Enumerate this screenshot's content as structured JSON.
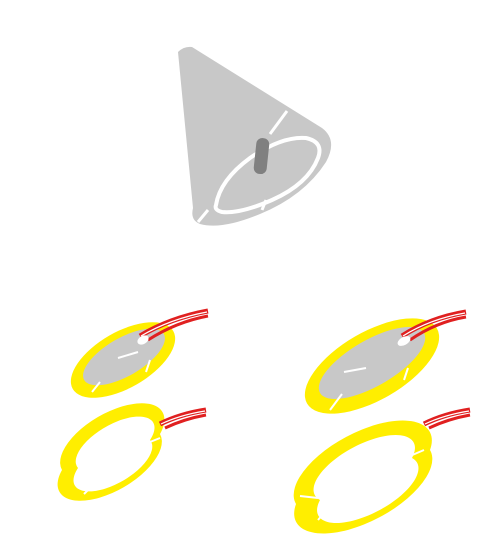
{
  "scene": {
    "description_items": [
      {
        "id": "cone-shell",
        "icon": "cone-icon"
      },
      {
        "id": "disc-small-electroded",
        "icon": "piezo-disc-icon"
      },
      {
        "id": "disc-large-electroded",
        "icon": "piezo-disc-icon"
      },
      {
        "id": "ring-small",
        "icon": "piezo-ring-icon"
      },
      {
        "id": "ring-large",
        "icon": "piezo-ring-icon"
      }
    ],
    "colors": {
      "background": "#ffffff",
      "cone": "#c8c8c8",
      "cone_slot": "#808080",
      "ceramic_yellow": "#ffee00",
      "electrode_gray": "#c8c8c8",
      "wire_red": "#e02020",
      "wire_highlight": "#ffffff"
    }
  }
}
